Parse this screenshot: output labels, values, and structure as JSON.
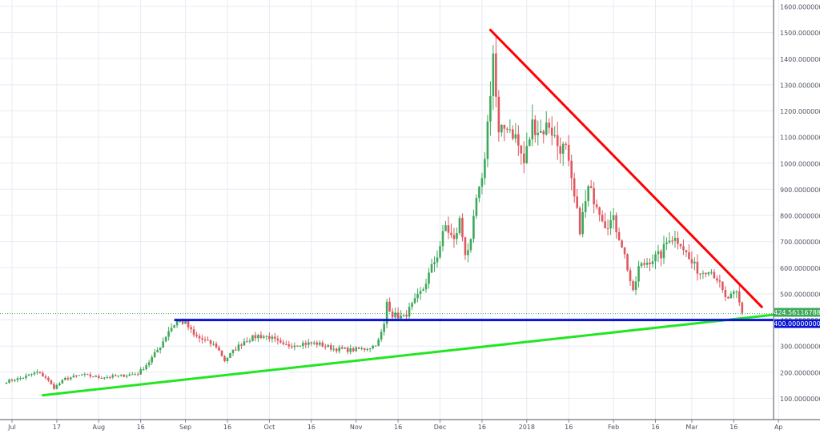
{
  "chart_data": {
    "type": "candlestick",
    "title": "",
    "xlabel": "",
    "ylabel": "",
    "ylim": [
      0,
      1620
    ],
    "xlim": [
      "2017-06-29",
      "2018-04-01"
    ],
    "grid": true,
    "legend": "none",
    "y_axis_position": "right",
    "y_ticks": [
      "100.00000000",
      "200.00000000",
      "300.00000000",
      "400.00000000",
      "500.00000000",
      "600.00000000",
      "700.00000000",
      "800.00000000",
      "900.00000000",
      "1000.00000000",
      "1100.00000000",
      "1200.00000000",
      "1300.00000000",
      "1400.00000000",
      "1500.00000000",
      "1600.00000000"
    ],
    "x_ticks": [
      {
        "date": "2017-07-01",
        "label": "Jul"
      },
      {
        "date": "2017-07-17",
        "label": "17"
      },
      {
        "date": "2017-08-01",
        "label": "Aug"
      },
      {
        "date": "2017-08-16",
        "label": "16"
      },
      {
        "date": "2017-09-01",
        "label": "Sep"
      },
      {
        "date": "2017-09-16",
        "label": "16"
      },
      {
        "date": "2017-10-01",
        "label": "Oct"
      },
      {
        "date": "2017-10-16",
        "label": "16"
      },
      {
        "date": "2017-11-01",
        "label": "Nov"
      },
      {
        "date": "2017-11-16",
        "label": "16"
      },
      {
        "date": "2017-12-01",
        "label": "Dec"
      },
      {
        "date": "2017-12-16",
        "label": "16"
      },
      {
        "date": "2018-01-01",
        "label": "2018"
      },
      {
        "date": "2018-01-16",
        "label": "16"
      },
      {
        "date": "2018-02-01",
        "label": "Feb"
      },
      {
        "date": "2018-02-16",
        "label": "16"
      },
      {
        "date": "2018-03-01",
        "label": "Mar"
      },
      {
        "date": "2018-03-16",
        "label": "16"
      },
      {
        "date": "2018-04-01",
        "label": "Ap"
      }
    ],
    "price_anchors": [
      [
        "2017-06-29",
        165
      ],
      [
        "2017-07-05",
        180
      ],
      [
        "2017-07-10",
        200
      ],
      [
        "2017-07-13",
        180
      ],
      [
        "2017-07-16",
        140
      ],
      [
        "2017-07-20",
        175
      ],
      [
        "2017-07-26",
        190
      ],
      [
        "2017-08-01",
        180
      ],
      [
        "2017-08-08",
        185
      ],
      [
        "2017-08-15",
        195
      ],
      [
        "2017-08-19",
        240
      ],
      [
        "2017-08-23",
        300
      ],
      [
        "2017-08-26",
        360
      ],
      [
        "2017-08-29",
        395
      ],
      [
        "2017-09-01",
        390
      ],
      [
        "2017-09-04",
        340
      ],
      [
        "2017-09-08",
        320
      ],
      [
        "2017-09-12",
        300
      ],
      [
        "2017-09-15",
        245
      ],
      [
        "2017-09-18",
        280
      ],
      [
        "2017-09-22",
        320
      ],
      [
        "2017-09-27",
        340
      ],
      [
        "2017-10-01",
        335
      ],
      [
        "2017-10-06",
        300
      ],
      [
        "2017-10-12",
        310
      ],
      [
        "2017-10-18",
        310
      ],
      [
        "2017-10-24",
        290
      ],
      [
        "2017-10-30",
        285
      ],
      [
        "2017-11-04",
        290
      ],
      [
        "2017-11-07",
        300
      ],
      [
        "2017-11-09",
        320
      ],
      [
        "2017-11-11",
        380
      ],
      [
        "2017-11-12",
        470
      ],
      [
        "2017-11-14",
        420
      ],
      [
        "2017-11-18",
        410
      ],
      [
        "2017-11-22",
        470
      ],
      [
        "2017-11-25",
        520
      ],
      [
        "2017-11-28",
        600
      ],
      [
        "2017-11-30",
        650
      ],
      [
        "2017-12-03",
        760
      ],
      [
        "2017-12-06",
        700
      ],
      [
        "2017-12-08",
        780
      ],
      [
        "2017-12-10",
        660
      ],
      [
        "2017-12-12",
        690
      ],
      [
        "2017-12-14",
        860
      ],
      [
        "2017-12-16",
        920
      ],
      [
        "2017-12-18",
        1150
      ],
      [
        "2017-12-20",
        1420
      ],
      [
        "2017-12-21",
        1250
      ],
      [
        "2017-12-22",
        1100
      ],
      [
        "2017-12-25",
        1150
      ],
      [
        "2017-12-28",
        1100
      ],
      [
        "2017-12-31",
        1000
      ],
      [
        "2018-01-03",
        1150
      ],
      [
        "2018-01-06",
        1120
      ],
      [
        "2018-01-09",
        1150
      ],
      [
        "2018-01-12",
        1070
      ],
      [
        "2018-01-15",
        1050
      ],
      [
        "2018-01-17",
        920
      ],
      [
        "2018-01-20",
        750
      ],
      [
        "2018-01-23",
        900
      ],
      [
        "2018-01-26",
        850
      ],
      [
        "2018-01-29",
        770
      ],
      [
        "2018-02-01",
        780
      ],
      [
        "2018-02-04",
        690
      ],
      [
        "2018-02-06",
        600
      ],
      [
        "2018-02-08",
        500
      ],
      [
        "2018-02-10",
        600
      ],
      [
        "2018-02-14",
        630
      ],
      [
        "2018-02-18",
        650
      ],
      [
        "2018-02-21",
        720
      ],
      [
        "2018-02-25",
        700
      ],
      [
        "2018-02-28",
        630
      ],
      [
        "2018-03-04",
        580
      ],
      [
        "2018-03-07",
        600
      ],
      [
        "2018-03-10",
        560
      ],
      [
        "2018-03-13",
        480
      ],
      [
        "2018-03-17",
        500
      ],
      [
        "2018-03-19",
        425
      ]
    ],
    "annotations": [
      {
        "name": "support-trendline",
        "color": "#22e622",
        "points": [
          [
            "2017-07-12",
            112
          ],
          [
            "2018-04-01",
            422
          ]
        ]
      },
      {
        "name": "resistance-trendline",
        "color": "#ff0000",
        "points": [
          [
            "2017-12-19",
            1510
          ],
          [
            "2018-03-26",
            450
          ]
        ]
      },
      {
        "name": "horizontal-support",
        "color": "#0a14d6",
        "value": 400.0,
        "from": "2017-08-28",
        "to": "2018-04-01"
      }
    ],
    "current_price": {
      "value": 424.56116788,
      "label": "424.56116788"
    },
    "support_label": "400.00000000",
    "colors": {
      "up": "#3ea95b",
      "down": "#e0575f",
      "grid": "#e6ebf3",
      "axis_text": "#4c525e",
      "price_line": "#3ea95b"
    }
  }
}
